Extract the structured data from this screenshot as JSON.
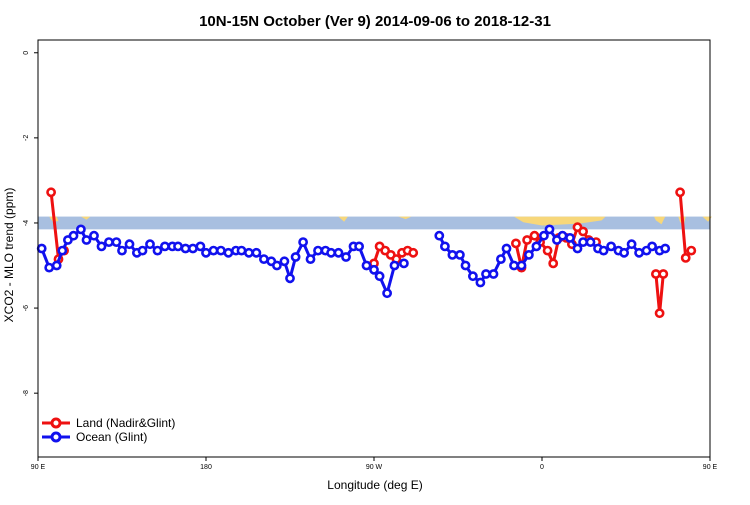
{
  "chart_data": {
    "type": "line",
    "title": "10N-15N October (Ver 9)   2014-09-06 to 2018-12-31",
    "xlabel": "Longitude (deg E)",
    "ylabel": "XCO2 - MLO trend (ppm)",
    "xlim": [
      90,
      450
    ],
    "ylim": [
      -9.5,
      0.3
    ],
    "x_ticks": [
      {
        "value": 90,
        "label": "90 E"
      },
      {
        "value": 180,
        "label": "180"
      },
      {
        "value": 270,
        "label": "90 W"
      },
      {
        "value": 360,
        "label": "0"
      },
      {
        "value": 450,
        "label": "90 E"
      },
      {
        "value": 540,
        "label": "180"
      }
    ],
    "y_ticks": [
      {
        "value": 0,
        "label": "0"
      },
      {
        "value": -2,
        "label": "-2"
      },
      {
        "value": -4,
        "label": "-4"
      },
      {
        "value": -6,
        "label": "-6"
      },
      {
        "value": -8,
        "label": "-8"
      }
    ],
    "legend_position": "bottom-left",
    "map_strip": {
      "y_top": -3.85,
      "y_bottom": -4.15,
      "ocean_color": "#a8bfe0",
      "land_color": "#f7d77a"
    },
    "series": [
      {
        "name": "Land (Nadir&Glint)",
        "color": "#ee1111",
        "segments": [
          [
            [
              97,
              -3.28
            ],
            [
              101,
              -4.85
            ],
            [
              104,
              -4.65
            ]
          ],
          [
            [
              270,
              -4.95
            ],
            [
              273,
              -4.55
            ],
            [
              276,
              -4.65
            ],
            [
              279,
              -4.75
            ],
            [
              282,
              -4.85
            ],
            [
              285,
              -4.7
            ]
          ],
          [
            [
              288,
              -4.65
            ],
            [
              291,
              -4.7
            ]
          ],
          [
            [
              346,
              -4.48
            ],
            [
              349,
              -5.05
            ],
            [
              352,
              -4.4
            ],
            [
              356,
              -4.3
            ],
            [
              359,
              -4.45
            ],
            [
              363,
              -4.65
            ],
            [
              366,
              -4.95
            ],
            [
              369,
              -4.35
            ],
            [
              373,
              -4.35
            ],
            [
              376,
              -4.5
            ],
            [
              379,
              -4.1
            ],
            [
              382,
              -4.2
            ],
            [
              385,
              -4.4
            ],
            [
              389,
              -4.45
            ]
          ],
          [
            [
              421,
              -5.2
            ],
            [
              423,
              -6.12
            ],
            [
              425,
              -5.2
            ]
          ],
          [
            [
              434,
              -3.28
            ],
            [
              437,
              -4.82
            ],
            [
              440,
              -4.65
            ]
          ]
        ]
      },
      {
        "name": "Ocean (Glint)",
        "color": "#1111ee",
        "segments": [
          [
            [
              92,
              -4.6
            ],
            [
              96,
              -5.05
            ],
            [
              100,
              -5.0
            ],
            [
              103,
              -4.65
            ],
            [
              106,
              -4.4
            ],
            [
              109,
              -4.3
            ],
            [
              113,
              -4.15
            ],
            [
              116,
              -4.4
            ],
            [
              120,
              -4.3
            ],
            [
              124,
              -4.55
            ],
            [
              128,
              -4.45
            ],
            [
              132,
              -4.45
            ],
            [
              135,
              -4.65
            ],
            [
              139,
              -4.5
            ],
            [
              143,
              -4.7
            ],
            [
              146,
              -4.65
            ],
            [
              150,
              -4.5
            ],
            [
              154,
              -4.65
            ],
            [
              158,
              -4.55
            ],
            [
              162,
              -4.55
            ],
            [
              165,
              -4.55
            ],
            [
              169,
              -4.6
            ],
            [
              173,
              -4.6
            ],
            [
              177,
              -4.55
            ],
            [
              180,
              -4.7
            ],
            [
              184,
              -4.65
            ],
            [
              188,
              -4.65
            ],
            [
              192,
              -4.7
            ],
            [
              196,
              -4.65
            ],
            [
              199,
              -4.65
            ],
            [
              203,
              -4.7
            ],
            [
              207,
              -4.7
            ],
            [
              211,
              -4.85
            ],
            [
              215,
              -4.9
            ],
            [
              218,
              -5.0
            ],
            [
              222,
              -4.9
            ],
            [
              225,
              -5.3
            ],
            [
              228,
              -4.8
            ],
            [
              232,
              -4.45
            ],
            [
              236,
              -4.85
            ],
            [
              240,
              -4.65
            ],
            [
              244,
              -4.65
            ],
            [
              247,
              -4.7
            ],
            [
              251,
              -4.7
            ],
            [
              255,
              -4.8
            ],
            [
              259,
              -4.55
            ],
            [
              262,
              -4.55
            ],
            [
              266,
              -5.0
            ],
            [
              270,
              -5.1
            ],
            [
              273,
              -5.25
            ],
            [
              277,
              -5.65
            ],
            [
              281,
              -5.0
            ]
          ],
          [
            [
              286,
              -4.95
            ]
          ],
          [
            [
              305,
              -4.3
            ],
            [
              308,
              -4.55
            ],
            [
              312,
              -4.75
            ],
            [
              316,
              -4.75
            ],
            [
              319,
              -5.0
            ],
            [
              323,
              -5.25
            ],
            [
              327,
              -5.4
            ],
            [
              330,
              -5.2
            ],
            [
              334,
              -5.2
            ],
            [
              338,
              -4.85
            ],
            [
              341,
              -4.6
            ],
            [
              345,
              -5.0
            ],
            [
              349,
              -5.0
            ],
            [
              353,
              -4.75
            ],
            [
              357,
              -4.55
            ],
            [
              361,
              -4.3
            ],
            [
              364,
              -4.15
            ],
            [
              368,
              -4.4
            ],
            [
              371,
              -4.3
            ],
            [
              375,
              -4.35
            ],
            [
              379,
              -4.6
            ],
            [
              382,
              -4.45
            ],
            [
              386,
              -4.45
            ],
            [
              390,
              -4.6
            ],
            [
              393,
              -4.65
            ],
            [
              397,
              -4.55
            ],
            [
              401,
              -4.65
            ],
            [
              404,
              -4.7
            ],
            [
              408,
              -4.5
            ],
            [
              412,
              -4.7
            ],
            [
              416,
              -4.65
            ],
            [
              419,
              -4.55
            ],
            [
              423,
              -4.65
            ],
            [
              426,
              -4.6
            ]
          ]
        ]
      }
    ]
  }
}
